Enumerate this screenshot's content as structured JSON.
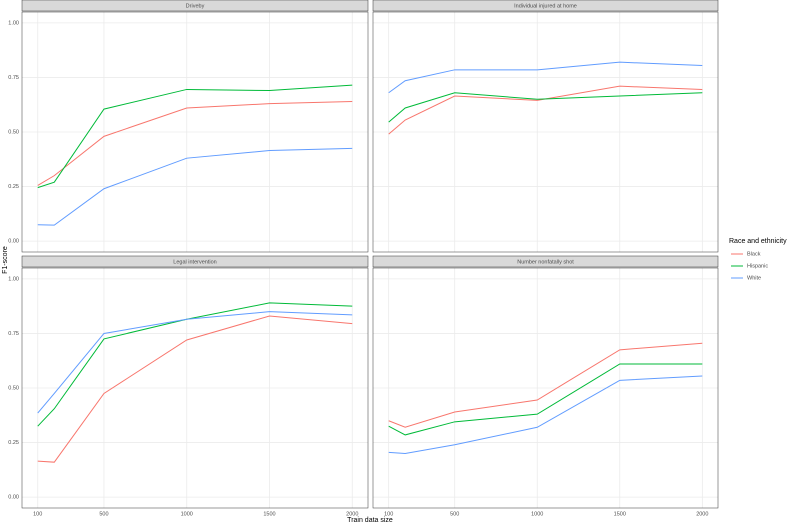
{
  "chart_data": {
    "type": "line",
    "xlabel": "Train data size",
    "ylabel": "F1-score",
    "legend_title": "Race and ethnicity",
    "x": [
      100,
      200,
      500,
      1000,
      1500,
      2000
    ],
    "xlim": [
      5,
      2095
    ],
    "xticks": [
      100,
      500,
      1000,
      1500,
      2000
    ],
    "ylim": [
      -0.05,
      1.05
    ],
    "yticks": [
      {
        "value": 0,
        "label": "0.00"
      },
      {
        "value": 0.25,
        "label": "0.25"
      },
      {
        "value": 0.5,
        "label": "0.50"
      },
      {
        "value": 0.75,
        "label": "0.75"
      },
      {
        "value": 1,
        "label": "1.00"
      }
    ],
    "grid": true,
    "series": [
      {
        "name": "Black",
        "color": "#F8766D"
      },
      {
        "name": "Hispanic",
        "color": "#00BA38"
      },
      {
        "name": "White",
        "color": "#619CFF"
      }
    ],
    "panels": [
      {
        "title": "Driveby",
        "values": [
          [
            0.255,
            0.3,
            0.48,
            0.61,
            0.63,
            0.64
          ],
          [
            0.245,
            0.27,
            0.605,
            0.695,
            0.69,
            0.715
          ],
          [
            0.075,
            0.073,
            0.24,
            0.38,
            0.415,
            0.425
          ]
        ]
      },
      {
        "title": "Individual injured at home",
        "values": [
          [
            0.49,
            0.555,
            0.665,
            0.645,
            0.71,
            0.695
          ],
          [
            0.545,
            0.61,
            0.68,
            0.65,
            0.665,
            0.68
          ],
          [
            0.68,
            0.735,
            0.785,
            0.785,
            0.82,
            0.805
          ]
        ]
      },
      {
        "title": "Legal intervention",
        "values": [
          [
            0.165,
            0.16,
            0.475,
            0.72,
            0.83,
            0.795
          ],
          [
            0.325,
            0.405,
            0.725,
            0.815,
            0.89,
            0.875
          ],
          [
            0.385,
            0.475,
            0.75,
            0.815,
            0.85,
            0.835
          ]
        ]
      },
      {
        "title": "Number nonfatally shot",
        "values": [
          [
            0.35,
            0.32,
            0.39,
            0.445,
            0.675,
            0.705
          ],
          [
            0.325,
            0.285,
            0.345,
            0.38,
            0.61,
            0.61
          ],
          [
            0.205,
            0.2,
            0.24,
            0.32,
            0.535,
            0.555
          ]
        ]
      }
    ]
  }
}
